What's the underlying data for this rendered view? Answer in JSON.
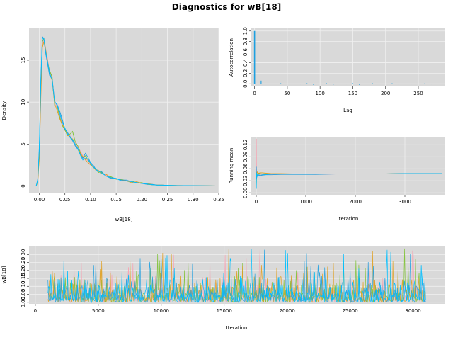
{
  "title": "Diagnostics for wB[18]",
  "colors": {
    "panel_bg": "#d9d9d9",
    "grid": "#f0f0f0",
    "chain1": "#f8a0b0",
    "chain2": "#7cc130",
    "chain3": "#e0a020",
    "chain4": "#1ea0e0",
    "chain5": "#00bfff"
  },
  "chart_data": [
    {
      "type": "line",
      "panel": "density",
      "xlabel": "wB[18]",
      "ylabel": "Density",
      "xlim": [
        -0.02,
        0.35
      ],
      "ylim": [
        -0.8,
        18.8
      ],
      "xticks": [
        0.0,
        0.05,
        0.1,
        0.15,
        0.2,
        0.25,
        0.3,
        0.35
      ],
      "xtick_labels": [
        "0.00",
        "0.05",
        "0.10",
        "0.15",
        "0.20",
        "0.25",
        "0.30",
        "0.35"
      ],
      "yticks": [
        0,
        5,
        10,
        15
      ],
      "ytick_labels": [
        "0",
        "5",
        "10",
        "15"
      ],
      "x": [
        -0.006,
        -0.003,
        0.0,
        0.003,
        0.006,
        0.009,
        0.012,
        0.016,
        0.02,
        0.025,
        0.03,
        0.035,
        0.04,
        0.045,
        0.05,
        0.055,
        0.06,
        0.065,
        0.07,
        0.075,
        0.08,
        0.085,
        0.09,
        0.095,
        0.1,
        0.105,
        0.11,
        0.115,
        0.12,
        0.13,
        0.14,
        0.15,
        0.16,
        0.17,
        0.18,
        0.19,
        0.2,
        0.21,
        0.22,
        0.23,
        0.24,
        0.25,
        0.27,
        0.29,
        0.31,
        0.33,
        0.345
      ],
      "series": [
        {
          "color": "chain1",
          "values": [
            0.0,
            0.6,
            3.5,
            11.0,
            16.8,
            17.4,
            16.6,
            15.2,
            13.6,
            12.9,
            10.2,
            9.3,
            8.4,
            7.4,
            6.6,
            6.3,
            6.0,
            5.4,
            5.2,
            4.6,
            4.2,
            3.6,
            3.2,
            3.0,
            2.6,
            2.4,
            2.0,
            1.8,
            1.6,
            1.3,
            1.0,
            0.9,
            0.7,
            0.6,
            0.5,
            0.4,
            0.3,
            0.2,
            0.15,
            0.12,
            0.1,
            0.08,
            0.06,
            0.04,
            0.03,
            0.02,
            0.01
          ]
        },
        {
          "color": "chain2",
          "values": [
            0.0,
            0.6,
            3.8,
            11.5,
            17.2,
            17.6,
            16.4,
            14.8,
            13.8,
            13.0,
            9.6,
            9.5,
            8.2,
            7.2,
            6.7,
            6.0,
            6.2,
            6.5,
            5.3,
            4.8,
            4.0,
            3.4,
            3.6,
            3.1,
            2.7,
            2.2,
            2.1,
            1.6,
            1.7,
            1.2,
            1.1,
            0.8,
            0.8,
            0.6,
            0.6,
            0.4,
            0.4,
            0.2,
            0.15,
            0.1,
            0.1,
            0.08,
            0.05,
            0.05,
            0.03,
            0.02,
            0.01
          ]
        },
        {
          "color": "chain3",
          "values": [
            0.0,
            0.5,
            3.2,
            10.6,
            16.5,
            17.2,
            16.3,
            15.0,
            13.4,
            12.6,
            9.8,
            9.0,
            8.0,
            7.3,
            6.9,
            6.1,
            5.8,
            5.6,
            5.0,
            4.4,
            3.9,
            3.5,
            3.1,
            2.8,
            2.5,
            2.3,
            1.9,
            1.9,
            1.5,
            1.4,
            1.0,
            0.9,
            0.7,
            0.6,
            0.4,
            0.5,
            0.3,
            0.3,
            0.2,
            0.1,
            0.1,
            0.07,
            0.06,
            0.04,
            0.02,
            0.02,
            0.01
          ]
        },
        {
          "color": "chain4",
          "values": [
            0.0,
            0.7,
            4.2,
            12.2,
            17.8,
            17.6,
            16.0,
            14.6,
            13.2,
            12.8,
            10.0,
            9.7,
            8.9,
            7.9,
            6.8,
            6.4,
            5.8,
            5.4,
            4.8,
            4.4,
            3.8,
            3.3,
            3.9,
            3.4,
            2.8,
            2.5,
            2.0,
            1.7,
            1.8,
            1.2,
            0.9,
            0.9,
            0.7,
            0.7,
            0.5,
            0.4,
            0.3,
            0.2,
            0.2,
            0.1,
            0.1,
            0.07,
            0.05,
            0.04,
            0.03,
            0.02,
            0.01
          ]
        },
        {
          "color": "chain5",
          "values": [
            0.0,
            0.8,
            4.6,
            12.8,
            17.7,
            17.5,
            16.2,
            14.9,
            13.5,
            12.7,
            10.1,
            9.6,
            8.6,
            7.6,
            6.9,
            6.2,
            5.9,
            5.5,
            5.0,
            4.5,
            3.7,
            3.1,
            3.3,
            3.2,
            2.7,
            2.3,
            2.0,
            1.8,
            1.6,
            1.2,
            1.0,
            0.9,
            0.6,
            0.6,
            0.5,
            0.4,
            0.3,
            0.25,
            0.15,
            0.1,
            0.1,
            0.08,
            0.05,
            0.04,
            0.03,
            0.02,
            0.01
          ]
        }
      ]
    },
    {
      "type": "bar",
      "panel": "autocorrelation",
      "xlabel": "Lag",
      "ylabel": "Autocorrelation",
      "xlim": [
        -5,
        290
      ],
      "ylim": [
        -0.05,
        1.05
      ],
      "xticks": [
        0,
        50,
        100,
        150,
        200,
        250
      ],
      "xtick_labels": [
        "0",
        "50",
        "100",
        "150",
        "200",
        "250"
      ],
      "yticks": [
        0.0,
        0.2,
        0.4,
        0.6,
        0.8,
        1.0
      ],
      "ytick_labels": [
        "0.0",
        "0.2",
        "0.4",
        "0.6",
        "0.8",
        "1.0"
      ],
      "lags": [
        0,
        10,
        20,
        30,
        40,
        50,
        60,
        70,
        80,
        90,
        100,
        110,
        120,
        130,
        140,
        150,
        160,
        170,
        180,
        190,
        200,
        210,
        220,
        230,
        240,
        250,
        260,
        270,
        280
      ],
      "values": [
        1.0,
        0.06,
        -0.01,
        0.0,
        0.01,
        -0.01,
        0.0,
        -0.01,
        0.01,
        -0.02,
        0.0,
        0.01,
        -0.02,
        0.0,
        -0.01,
        0.01,
        -0.02,
        0.0,
        0.01,
        -0.01,
        0.0,
        0.01,
        -0.01,
        0.0,
        -0.01,
        0.0,
        0.01,
        -0.01,
        0.0
      ]
    },
    {
      "type": "line",
      "panel": "running-mean",
      "xlabel": "Iteration",
      "ylabel": "Running mean",
      "xlim": [
        -100,
        3800
      ],
      "ylim": [
        -0.005,
        0.14
      ],
      "xticks": [
        0,
        1000,
        2000,
        3000
      ],
      "xtick_labels": [
        "0",
        "1000",
        "2000",
        "3000"
      ],
      "yticks": [
        0.0,
        0.03,
        0.06,
        0.09,
        0.12
      ],
      "ytick_labels": [
        "0.00",
        "0.03",
        "0.06",
        "0.09",
        "0.12"
      ],
      "x": [
        1,
        5,
        10,
        20,
        30,
        50,
        80,
        120,
        200,
        300,
        500,
        800,
        1200,
        1600,
        2000,
        2500,
        3000,
        3500,
        3750
      ],
      "series": [
        {
          "color": "chain1",
          "values": [
            0.135,
            0.06,
            0.05,
            0.045,
            0.048,
            0.046,
            0.044,
            0.045,
            0.046,
            0.046,
            0.046,
            0.047,
            0.046,
            0.047,
            0.047,
            0.047,
            0.048,
            0.048,
            0.048
          ]
        },
        {
          "color": "chain2",
          "values": [
            0.02,
            0.035,
            0.042,
            0.048,
            0.047,
            0.049,
            0.048,
            0.047,
            0.048,
            0.047,
            0.047,
            0.047,
            0.047,
            0.047,
            0.047,
            0.047,
            0.048,
            0.048,
            0.048
          ]
        },
        {
          "color": "chain3",
          "values": [
            0.03,
            0.045,
            0.05,
            0.052,
            0.05,
            0.049,
            0.05,
            0.05,
            0.049,
            0.048,
            0.048,
            0.047,
            0.047,
            0.047,
            0.047,
            0.047,
            0.048,
            0.048,
            0.048
          ]
        },
        {
          "color": "chain4",
          "values": [
            0.065,
            0.04,
            0.038,
            0.042,
            0.044,
            0.044,
            0.043,
            0.044,
            0.045,
            0.045,
            0.046,
            0.046,
            0.046,
            0.047,
            0.047,
            0.047,
            0.048,
            0.048,
            0.048
          ]
        },
        {
          "color": "chain5",
          "values": [
            0.01,
            0.05,
            0.046,
            0.043,
            0.045,
            0.046,
            0.047,
            0.046,
            0.046,
            0.047,
            0.047,
            0.047,
            0.047,
            0.047,
            0.047,
            0.047,
            0.048,
            0.048,
            0.048
          ]
        }
      ]
    },
    {
      "type": "line",
      "panel": "trace",
      "xlabel": "Iteration",
      "ylabel": "wB[18]",
      "xlim": [
        -500,
        32500
      ],
      "ylim": [
        -0.01,
        0.355
      ],
      "xticks": [
        0,
        5000,
        10000,
        15000,
        20000,
        25000,
        30000
      ],
      "xtick_labels": [
        "0",
        "5000",
        "10000",
        "15000",
        "20000",
        "25000",
        "30000"
      ],
      "yticks": [
        0.0,
        0.05,
        0.1,
        0.15,
        0.2,
        0.25,
        0.3
      ],
      "ytick_labels": [
        "0.00",
        "0.05",
        "0.10",
        "0.15",
        "0.20",
        "0.25",
        "0.30"
      ],
      "iter_range": [
        1000,
        31000
      ],
      "mean": 0.048,
      "max": 0.345,
      "chain_order": [
        "chain1",
        "chain2",
        "chain3",
        "chain4",
        "chain5"
      ]
    }
  ]
}
